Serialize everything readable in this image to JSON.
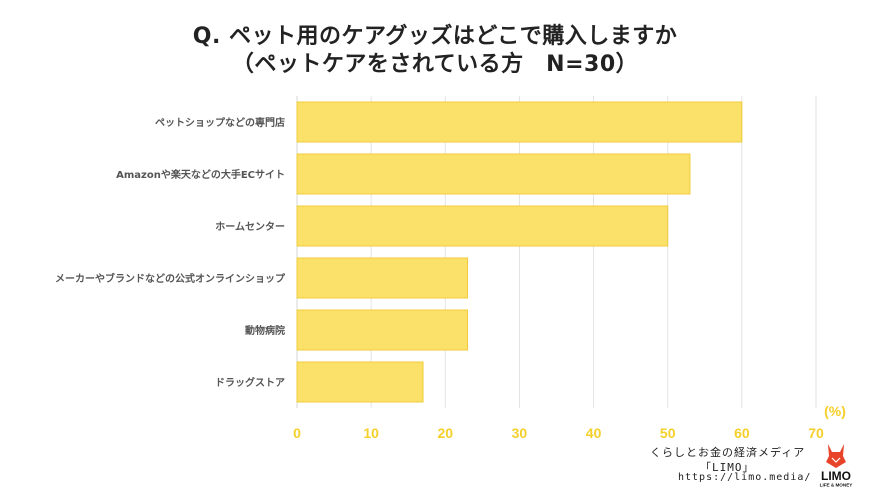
{
  "header": {
    "title": "Q. ペット用のケアグッズはどこで購入しますか",
    "subtitle": "（ペットケアをされている方　N=30）"
  },
  "chart_data": {
    "type": "bar",
    "orientation": "horizontal",
    "categories": [
      "ペットショップなどの専門店",
      "Amazonや楽天などの大手ECサイト",
      "ホームセンター",
      "メーカーやブランドなどの公式オンラインショップ",
      "動物病院",
      "ドラッグストア"
    ],
    "values": [
      60,
      53,
      50,
      23,
      23,
      17
    ],
    "xlim": [
      0,
      70
    ],
    "xticks": [
      0,
      10,
      20,
      30,
      40,
      50,
      60,
      70
    ],
    "unit_label": "(%)",
    "grid": true,
    "bar_color": "#fbe06a",
    "bar_edge_color": "#f0cc3c",
    "tick_color": "#f5cf2a"
  },
  "footer": {
    "line1": "くらしとお金の経済メディア",
    "line2": "「LIMO」",
    "line3": "https://limo.media/"
  },
  "logo": {
    "icon": "fox-icon",
    "text": "LIMO",
    "tagline": "LIFE & MONEY",
    "color": "#e8442a"
  }
}
